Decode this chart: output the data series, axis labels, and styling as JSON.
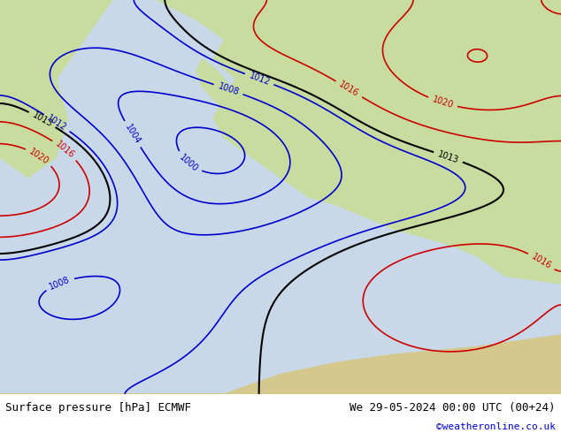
{
  "title_left": "Surface pressure [hPa] ECMWF",
  "title_right": "We 29-05-2024 00:00 UTC (00+24)",
  "credit": "©weatheronline.co.uk",
  "bg_color": "#e8f4e8",
  "map_bg": "#c8e0c8",
  "fig_width": 6.34,
  "fig_height": 4.9,
  "dpi": 100,
  "footer_bg": "#e0e0e0",
  "title_fontsize": 9,
  "credit_fontsize": 8,
  "credit_color": "#0000cc"
}
